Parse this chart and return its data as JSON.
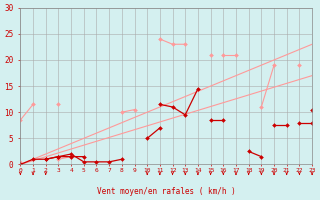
{
  "x": [
    0,
    1,
    2,
    3,
    4,
    5,
    6,
    7,
    8,
    9,
    10,
    11,
    12,
    13,
    14,
    15,
    16,
    17,
    18,
    19,
    20,
    21,
    22,
    23
  ],
  "line_diag1": [
    [
      0,
      23
    ],
    [
      0,
      23
    ]
  ],
  "line_diag2": [
    [
      0,
      23
    ],
    [
      0,
      17
    ]
  ],
  "line3_light": [
    0.5,
    null,
    null,
    1.0,
    1.5,
    null,
    null,
    null,
    null,
    null,
    null,
    24,
    23,
    23,
    null,
    21,
    null,
    null,
    null,
    11,
    19,
    null,
    19,
    null
  ],
  "line4_light": [
    8.5,
    11.5,
    null,
    11.5,
    null,
    null,
    null,
    null,
    10,
    10.5,
    null,
    null,
    null,
    null,
    null,
    null,
    21,
    21,
    null,
    null,
    null,
    null,
    null,
    null
  ],
  "line5_dark": [
    0,
    null,
    1.0,
    1.5,
    2.0,
    0.5,
    0.5,
    0.5,
    1.0,
    null,
    null,
    11.5,
    11.0,
    9.5,
    14.5,
    null,
    null,
    null,
    null,
    null,
    7.5,
    7.5,
    null,
    10.5
  ],
  "line6_dark": [
    0,
    1.0,
    1.0,
    1.5,
    1.5,
    1.5,
    null,
    null,
    null,
    null,
    5,
    7,
    null,
    null,
    null,
    8.5,
    8.5,
    null,
    2.5,
    1.5,
    null,
    null,
    8,
    8
  ],
  "arrows_x": [
    0,
    1,
    2,
    10,
    11,
    12,
    13,
    14,
    15,
    16,
    17,
    18,
    19,
    20,
    21,
    22,
    23
  ],
  "background_color": "#d4f0f0",
  "grid_color": "#aaaaaa",
  "line_color_light": "#ff9999",
  "line_color_dark": "#cc0000",
  "axis_label_color": "#cc0000",
  "tick_color": "#cc0000",
  "xlabel": "Vent moyen/en rafales ( km/h )",
  "ylim": [
    0,
    30
  ],
  "xlim": [
    0,
    23
  ],
  "yticks": [
    0,
    5,
    10,
    15,
    20,
    25,
    30
  ]
}
